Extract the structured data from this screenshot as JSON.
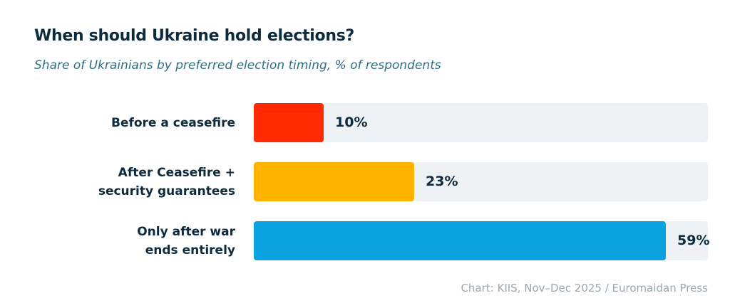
{
  "header": {
    "title": "When should Ukraine hold elections?",
    "subtitle": "Share of Ukrainians by preferred election timing, % of respondents"
  },
  "chart_data": {
    "type": "bar",
    "orientation": "horizontal",
    "title": "When should Ukraine hold elections?",
    "subtitle": "Share of Ukrainians by preferred election timing, % of respondents",
    "categories": [
      "Before a ceasefire",
      "After Ceasefire +\nsecurity guarantees",
      "Only after war\nends entirely"
    ],
    "values": [
      10,
      23,
      59
    ],
    "value_labels": [
      "10%",
      "23%",
      "59%"
    ],
    "colors": [
      "#ff2a00",
      "#ffb300",
      "#0aa3e0"
    ],
    "track_color": "#eef2f5",
    "xlim": [
      0,
      65
    ],
    "grid": false,
    "legend": "none"
  },
  "footer": {
    "source": "Chart: KIIS, Nov–Dec 2025 / Euromaidan Press"
  }
}
